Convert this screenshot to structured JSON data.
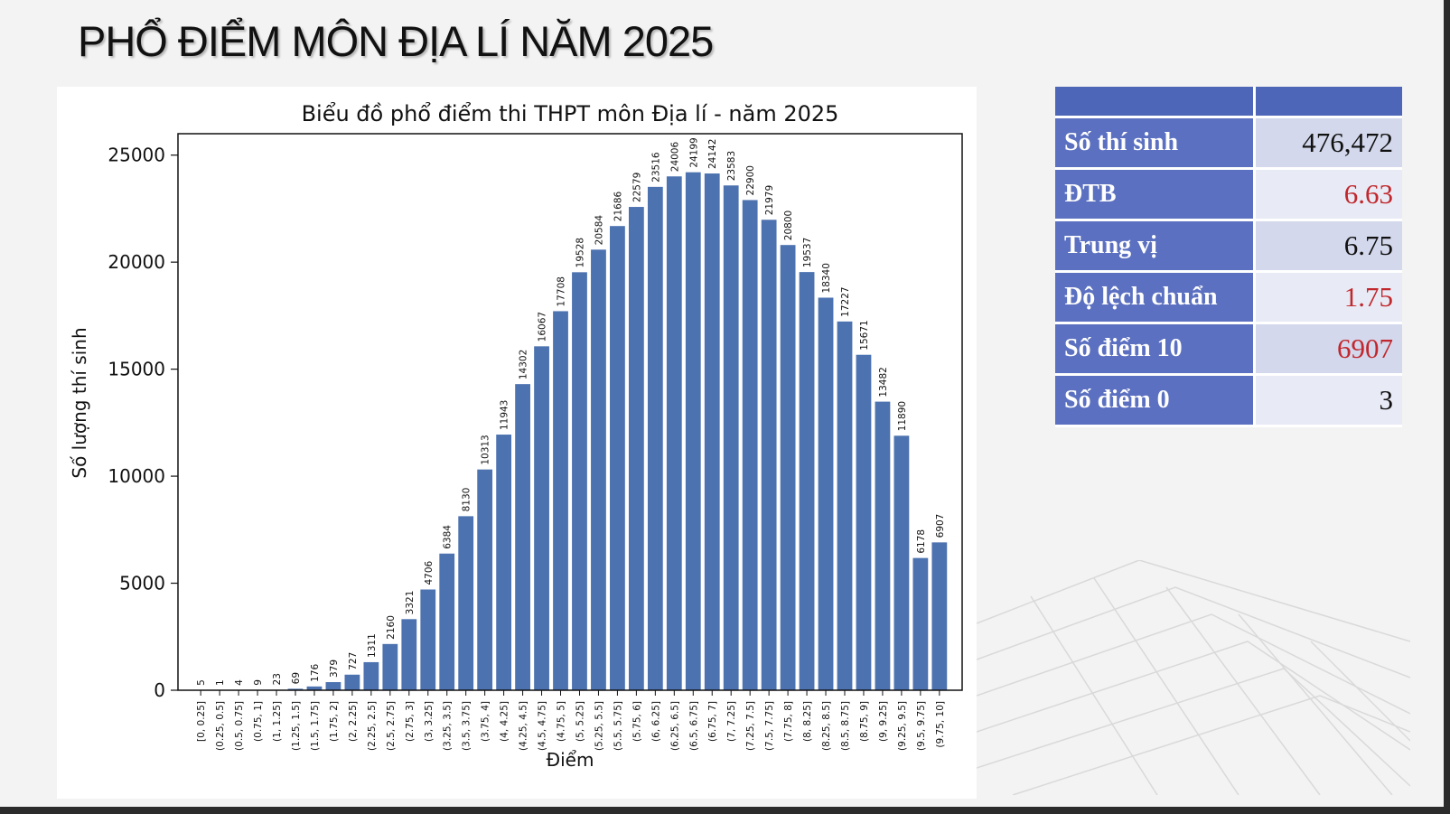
{
  "slide": {
    "title": "PHỔ ĐIỂM MÔN ĐỊA LÍ NĂM 2025"
  },
  "colors": {
    "bar": "#4c72b0",
    "table_header": "#4e66b8",
    "table_label_bg": "#5b70c0",
    "highlight_red": "#c1272d"
  },
  "stats_table": {
    "rows": [
      {
        "label": "Số thí sinh",
        "value": "476,472"
      },
      {
        "label": "ĐTB",
        "value": "6.63"
      },
      {
        "label": "Trung vị",
        "value": "6.75"
      },
      {
        "label": "Độ lệch chuẩn",
        "value": "1.75"
      },
      {
        "label": "Số điểm 10",
        "value": "6907"
      },
      {
        "label": "Số điểm 0",
        "value": "3"
      }
    ]
  },
  "chart_data": {
    "type": "bar",
    "title": "Biểu đồ phổ điểm thi THPT môn Địa lí - năm 2025",
    "xlabel": "Điểm",
    "ylabel": "Số lượng thí sinh",
    "ylim": [
      0,
      26000
    ],
    "yticks": [
      0,
      5000,
      10000,
      15000,
      20000,
      25000
    ],
    "grid": false,
    "categories": [
      "[0, 0.25]",
      "(0.25, 0.5]",
      "(0.5, 0.75]",
      "(0.75, 1]",
      "(1, 1.25]",
      "(1.25, 1.5]",
      "(1.5, 1.75]",
      "(1.75, 2]",
      "(2, 2.25]",
      "(2.25, 2.5]",
      "(2.5, 2.75]",
      "(2.75, 3]",
      "(3, 3.25]",
      "(3.25, 3.5]",
      "(3.5, 3.75]",
      "(3.75, 4]",
      "(4, 4.25]",
      "(4.25, 4.5]",
      "(4.5, 4.75]",
      "(4.75, 5]",
      "(5, 5.25]",
      "(5.25, 5.5]",
      "(5.5, 5.75]",
      "(5.75, 6]",
      "(6, 6.25]",
      "(6.25, 6.5]",
      "(6.5, 6.75]",
      "(6.75, 7]",
      "(7, 7.25]",
      "(7.25, 7.5]",
      "(7.5, 7.75]",
      "(7.75, 8]",
      "(8, 8.25]",
      "(8.25, 8.5]",
      "(8.5, 8.75]",
      "(8.75, 9]",
      "(9, 9.25]",
      "(9.25, 9.5]",
      "(9.5, 9.75]",
      "(9.75, 10]"
    ],
    "values": [
      5,
      1,
      4,
      9,
      23,
      69,
      176,
      379,
      727,
      1311,
      2160,
      3321,
      4706,
      6384,
      8130,
      10313,
      11943,
      14302,
      16067,
      17708,
      19528,
      20584,
      21686,
      22579,
      23516,
      24006,
      24199,
      24142,
      23583,
      22900,
      21979,
      20800,
      19537,
      18340,
      17227,
      15671,
      13482,
      11890,
      6178,
      6907
    ]
  }
}
